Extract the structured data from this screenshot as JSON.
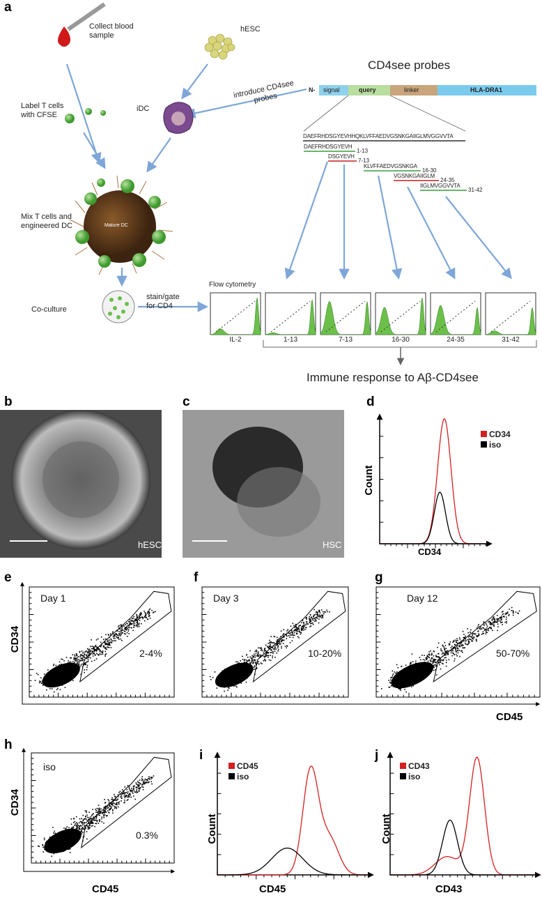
{
  "panel_a": {
    "label": "a",
    "collect_blood": "Collect blood sample",
    "hesc": "hESC",
    "probes_title": "CD4see probes",
    "construct": [
      "N-",
      "signal",
      "query",
      "linker",
      "HLA-DRA1"
    ],
    "introduce": "introduce CD4see probes",
    "label_t_cells": "Label T cells with CFSE",
    "idc": "iDC",
    "sequence": "DAEFRHDSGYEVHHQKLVFFAEDVGSNKGAIIGLMVGGVVTA",
    "peptides": [
      {
        "seq": "DAEFRHDSGYEVH",
        "range": "1-13"
      },
      {
        "seq": "DSGYEVH",
        "range": "7-13"
      },
      {
        "seq": "KLVFFAEDVGSNKGA",
        "range": "16-30"
      },
      {
        "seq": "VGSNKGAIIGLM",
        "range": "24-35"
      },
      {
        "seq": "IIGLMVGGVVTA",
        "range": "31-42"
      }
    ],
    "mix": "Mix T cells and engineered DC",
    "mature_dc": "Mature DC",
    "coculture": "Co-culture",
    "stain": "stain/gate for CD4",
    "flow": "Flow cytometry",
    "histograms": [
      "IL-2",
      "1-13",
      "7-13",
      "16-30",
      "24-35",
      "31-42"
    ],
    "response": "Immune response to Aβ-CD4see"
  },
  "panel_b": {
    "label": "b",
    "caption": "hESC"
  },
  "panel_c": {
    "label": "c",
    "caption": "HSC"
  },
  "panel_d": {
    "label": "d",
    "legend": [
      "CD34",
      "iso"
    ],
    "y_label": "Count",
    "x_label": "CD34"
  },
  "panel_e": {
    "label": "e",
    "day": "Day 1",
    "percent": "2-4%",
    "y_label": "CD34"
  },
  "panel_f": {
    "label": "f",
    "day": "Day 3",
    "percent": "10-20%"
  },
  "panel_g": {
    "label": "g",
    "day": "Day 12",
    "percent": "50-70%",
    "x_label": "CD45"
  },
  "panel_h": {
    "label": "h",
    "tag": "iso",
    "percent": "0.3%",
    "y_label": "CD34",
    "x_label": "CD45"
  },
  "panel_i": {
    "label": "i",
    "legend": [
      "CD45",
      "iso"
    ],
    "y_label": "Count",
    "x_label": "CD45"
  },
  "panel_j": {
    "label": "j",
    "legend": [
      "CD43",
      "iso"
    ],
    "y_label": "Count",
    "x_label": "CD43"
  }
}
